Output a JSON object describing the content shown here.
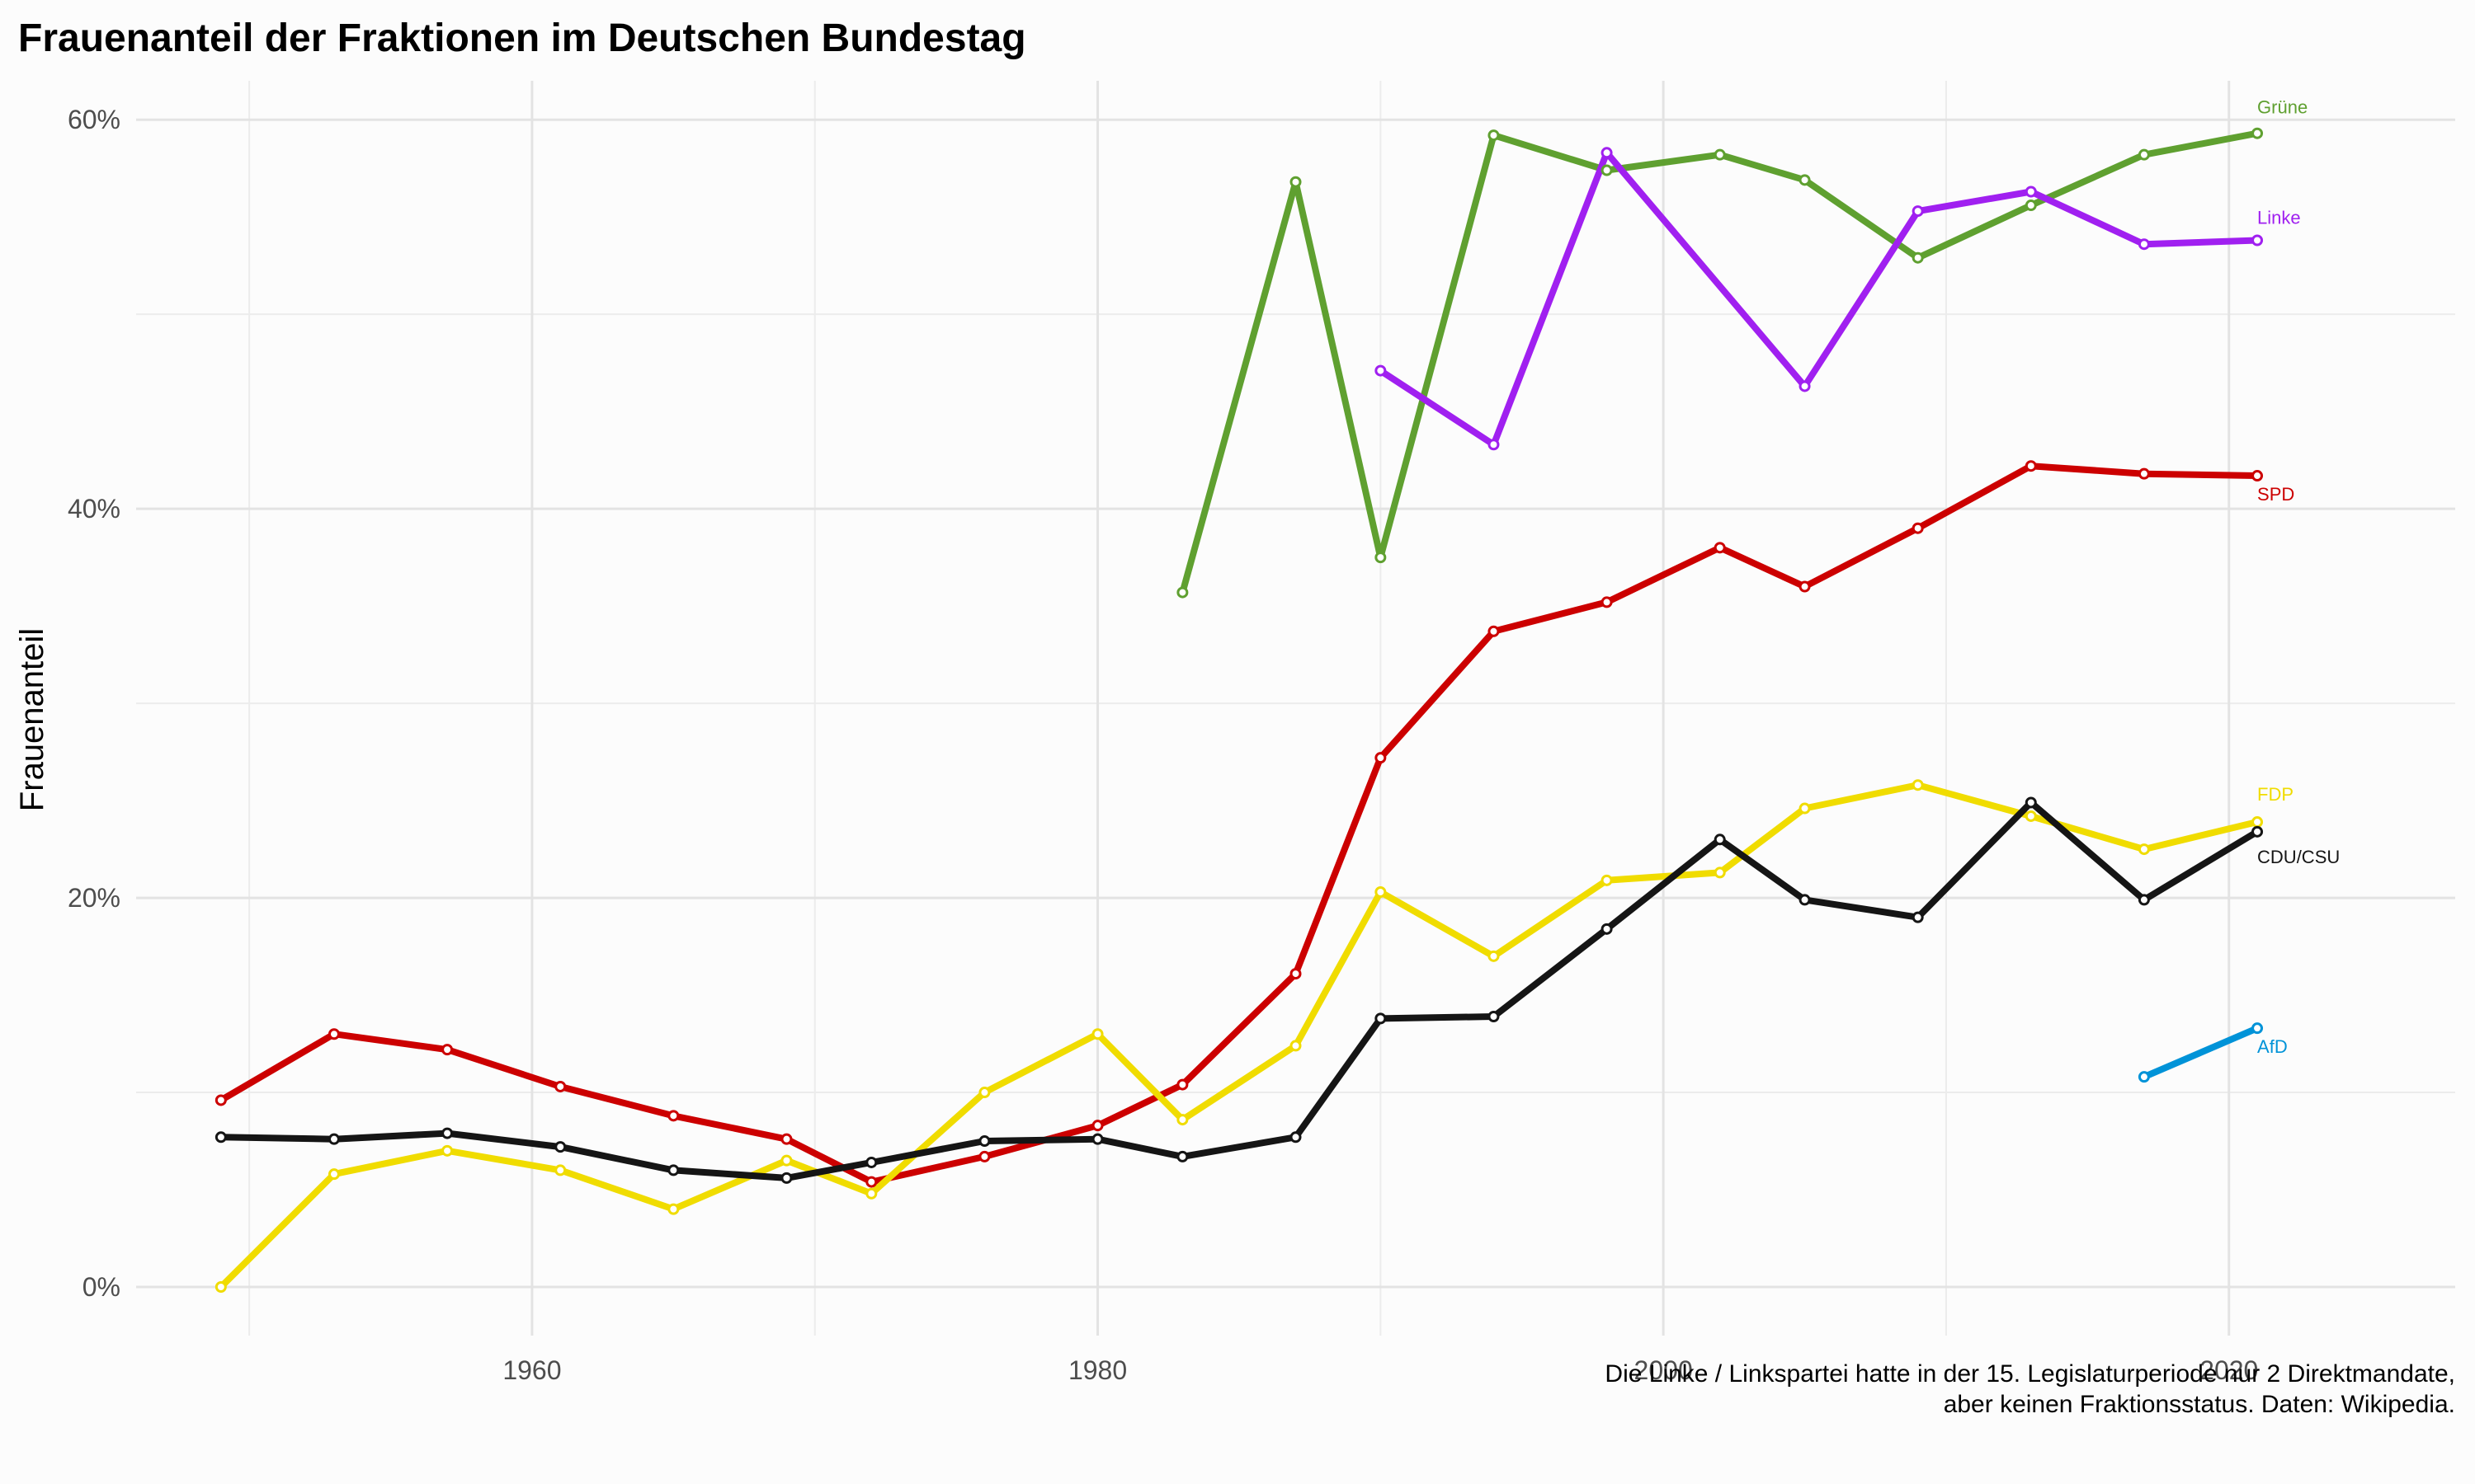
{
  "chart_data": {
    "type": "line",
    "title": "Frauenanteil der Fraktionen im Deutschen Bundestag",
    "xlabel": "",
    "ylabel": "Frauenanteil",
    "xlim": [
      1946,
      2028
    ],
    "ylim": [
      -2.5,
      62
    ],
    "x_ticks": [
      1960,
      1980,
      2000,
      2020
    ],
    "x_tick_labels": [
      "1960",
      "1980",
      "2000",
      "2020"
    ],
    "y_ticks": [
      0,
      20,
      40,
      60
    ],
    "y_tick_labels": [
      "0%",
      "20%",
      "40%",
      "60%"
    ],
    "grid": true,
    "legend": "none (direct labels at line ends)",
    "caption": [
      "Die Linke / Linkspartei hatte in der 15. Legislaturperiode nur 2 Direktmandate,",
      "aber keinen Fraktionsstatus. Daten: Wikipedia."
    ],
    "series": [
      {
        "name": "Grüne",
        "color": "#5fa030",
        "x": [
          1983,
          1987,
          1990,
          1994,
          1998,
          2002,
          2005,
          2009,
          2013,
          2017,
          2021
        ],
        "values": [
          35.7,
          56.8,
          37.5,
          59.2,
          57.4,
          58.2,
          56.9,
          52.9,
          55.6,
          58.2,
          59.3
        ]
      },
      {
        "name": "Linke",
        "color": "#a020f0",
        "x": [
          1990,
          1994,
          1998,
          2005,
          2009,
          2013,
          2017,
          2021
        ],
        "values": [
          47.1,
          43.3,
          58.3,
          46.3,
          55.3,
          56.3,
          53.6,
          53.8
        ]
      },
      {
        "name": "SPD",
        "color": "#cc0000",
        "x": [
          1949,
          1953,
          1957,
          1961,
          1965,
          1969,
          1972,
          1976,
          1980,
          1983,
          1987,
          1990,
          1994,
          1998,
          2002,
          2005,
          2009,
          2013,
          2017,
          2021
        ],
        "values": [
          9.6,
          13.0,
          12.2,
          10.3,
          8.8,
          7.6,
          5.4,
          6.7,
          8.3,
          10.4,
          16.1,
          27.2,
          33.7,
          35.2,
          38.0,
          36.0,
          39.0,
          42.2,
          41.8,
          41.7
        ]
      },
      {
        "name": "FDP",
        "color": "#f0dc00",
        "x": [
          1949,
          1953,
          1957,
          1961,
          1965,
          1969,
          1972,
          1976,
          1980,
          1983,
          1987,
          1990,
          1994,
          1998,
          2002,
          2005,
          2009,
          2013,
          2017,
          2021
        ],
        "values": [
          0,
          5.8,
          7.0,
          6.0,
          4.0,
          6.5,
          4.8,
          10.0,
          13.0,
          8.6,
          12.4,
          20.3,
          17.0,
          20.9,
          21.3,
          24.6,
          25.8,
          24.2,
          22.5,
          23.9
        ]
      },
      {
        "name": "CDU/CSU",
        "color": "#151515",
        "x": [
          1949,
          1953,
          1957,
          1961,
          1965,
          1969,
          1972,
          1976,
          1980,
          1983,
          1987,
          1990,
          1994,
          1998,
          2002,
          2005,
          2009,
          2013,
          2017,
          2021
        ],
        "values": [
          7.7,
          7.6,
          7.9,
          7.2,
          6.0,
          5.6,
          6.4,
          7.5,
          7.6,
          6.7,
          7.7,
          13.8,
          13.9,
          18.4,
          23.0,
          19.9,
          19.0,
          24.9,
          19.9,
          23.4
        ]
      },
      {
        "name": "AfD",
        "color": "#0093d8",
        "x": [
          2017,
          2021
        ],
        "values": [
          10.8,
          13.3
        ]
      }
    ]
  }
}
